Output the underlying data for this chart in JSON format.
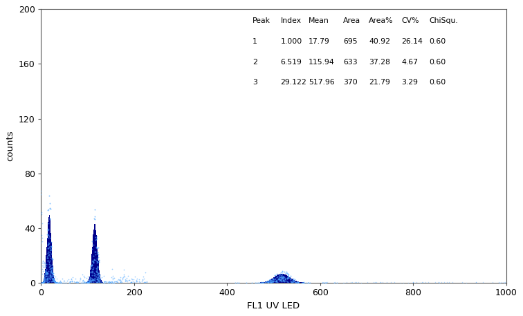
{
  "xlabel": "FL1 UV LED",
  "ylabel": "counts",
  "xlim": [
    0,
    1000
  ],
  "ylim": [
    0,
    200
  ],
  "yticks": [
    0,
    40,
    80,
    120,
    160,
    200
  ],
  "xticks": [
    0,
    200,
    400,
    600,
    800,
    1000
  ],
  "peak1_mean": 17.79,
  "peak1_sigma": 4.65,
  "peak1_height": 50,
  "peak2_mean": 115.94,
  "peak2_sigma": 5.41,
  "peak2_height": 43,
  "peak3_mean": 517.96,
  "peak3_sigma": 17.04,
  "peak3_height": 6.5,
  "bar_color": "#00008B",
  "scatter_color": "#4da6ff",
  "background_color": "#ffffff",
  "table_headers": [
    "Peak",
    "Index",
    "Mean",
    "Area",
    "Area%",
    "CV%",
    "ChiSqu."
  ],
  "table_data": [
    [
      "1",
      "1.000",
      "17.79",
      "695",
      "40.92",
      "26.14",
      "0.60"
    ],
    [
      "2",
      "6.519",
      "115.94",
      "633",
      "37.28",
      "4.67",
      "0.60"
    ],
    [
      "3",
      "29.122",
      "517.96",
      "370",
      "21.79",
      "3.29",
      "0.60"
    ]
  ]
}
